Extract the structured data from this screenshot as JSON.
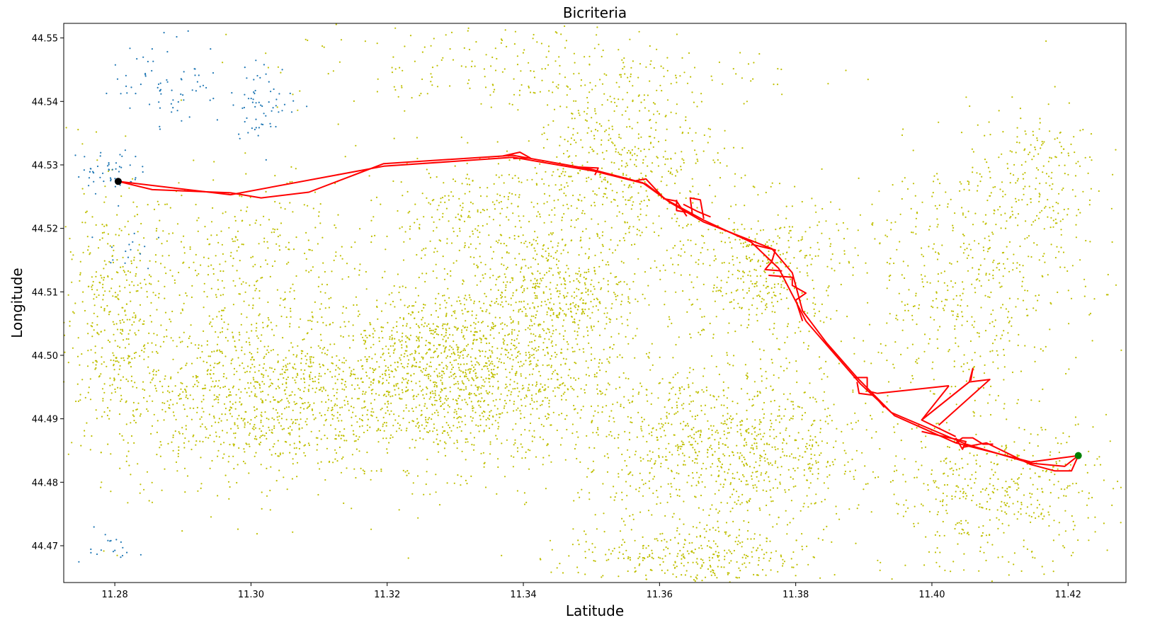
{
  "chart_data": {
    "type": "scatter",
    "title": "Bicriteria",
    "xlabel": "Latitude",
    "ylabel": "Longitude",
    "xlim": [
      11.2725,
      11.4285
    ],
    "ylim": [
      44.4642,
      44.5523
    ],
    "xticks": [
      11.28,
      11.3,
      11.32,
      11.34,
      11.36,
      11.38,
      11.4,
      11.42
    ],
    "yticks": [
      44.47,
      44.48,
      44.49,
      44.5,
      44.51,
      44.52,
      44.53,
      44.54,
      44.55
    ],
    "xtick_labels": [
      "11.28",
      "11.30",
      "11.32",
      "11.34",
      "11.36",
      "11.38",
      "11.40",
      "11.42"
    ],
    "ytick_labels": [
      "44.47",
      "44.48",
      "44.49",
      "44.50",
      "44.51",
      "44.52",
      "44.53",
      "44.54",
      "44.55"
    ],
    "grid": false,
    "colors": {
      "nodes_primary": "#bfbf00",
      "nodes_secondary": "#1f77b4",
      "route": "#ff0000",
      "start_marker": "#000000",
      "end_marker": "#008000"
    },
    "point_clusters": [
      {
        "series": "nodes_primary",
        "x": 11.33,
        "y": 44.497,
        "sx": 0.02,
        "sy": 0.012,
        "n": 1700
      },
      {
        "series": "nodes_primary",
        "x": 11.3,
        "y": 44.494,
        "sx": 0.016,
        "sy": 0.012,
        "n": 900
      },
      {
        "series": "nodes_primary",
        "x": 11.37,
        "y": 44.485,
        "sx": 0.018,
        "sy": 0.012,
        "n": 1000
      },
      {
        "series": "nodes_primary",
        "x": 11.355,
        "y": 44.53,
        "sx": 0.012,
        "sy": 0.012,
        "n": 500
      },
      {
        "series": "nodes_primary",
        "x": 11.28,
        "y": 44.505,
        "sx": 0.008,
        "sy": 0.018,
        "n": 450
      },
      {
        "series": "nodes_primary",
        "x": 11.41,
        "y": 44.478,
        "sx": 0.014,
        "sy": 0.01,
        "n": 450
      },
      {
        "series": "nodes_primary",
        "x": 11.405,
        "y": 44.512,
        "sx": 0.014,
        "sy": 0.016,
        "n": 500
      },
      {
        "series": "nodes_primary",
        "x": 11.375,
        "y": 44.513,
        "sx": 0.01,
        "sy": 0.01,
        "n": 400
      },
      {
        "series": "nodes_primary",
        "x": 11.333,
        "y": 44.522,
        "sx": 0.014,
        "sy": 0.008,
        "n": 300
      },
      {
        "series": "nodes_primary",
        "x": 11.3,
        "y": 44.517,
        "sx": 0.012,
        "sy": 0.01,
        "n": 250
      },
      {
        "series": "nodes_primary",
        "x": 11.365,
        "y": 44.468,
        "sx": 0.016,
        "sy": 0.004,
        "n": 300
      },
      {
        "series": "nodes_primary",
        "x": 11.345,
        "y": 44.51,
        "sx": 0.01,
        "sy": 0.008,
        "n": 400
      },
      {
        "series": "nodes_primary",
        "x": 11.34,
        "y": 44.545,
        "sx": 0.03,
        "sy": 0.006,
        "n": 250
      },
      {
        "series": "nodes_primary",
        "x": 11.415,
        "y": 44.528,
        "sx": 0.008,
        "sy": 0.01,
        "n": 200
      },
      {
        "series": "nodes_secondary",
        "x": 11.288,
        "y": 44.543,
        "sx": 0.007,
        "sy": 0.006,
        "n": 70
      },
      {
        "series": "nodes_secondary",
        "x": 11.302,
        "y": 44.54,
        "sx": 0.004,
        "sy": 0.005,
        "n": 60
      },
      {
        "series": "nodes_secondary",
        "x": 11.279,
        "y": 44.529,
        "sx": 0.004,
        "sy": 0.003,
        "n": 50
      },
      {
        "series": "nodes_secondary",
        "x": 11.278,
        "y": 44.47,
        "sx": 0.004,
        "sy": 0.002,
        "n": 20
      },
      {
        "series": "nodes_secondary",
        "x": 11.282,
        "y": 44.517,
        "sx": 0.003,
        "sy": 0.003,
        "n": 15
      }
    ],
    "route_paths": [
      [
        [
          11.2805,
          44.5274
        ],
        [
          11.2855,
          44.5261
        ],
        [
          11.297,
          44.5256
        ],
        [
          11.3015,
          44.5248
        ],
        [
          11.3085,
          44.5257
        ],
        [
          11.3195,
          44.5302
        ],
        [
          11.3385,
          44.5315
        ],
        [
          11.35,
          44.5293
        ],
        [
          11.3575,
          44.5272
        ],
        [
          11.361,
          44.5245
        ],
        [
          11.3665,
          44.5213
        ],
        [
          11.3735,
          44.5178
        ],
        [
          11.3775,
          44.5137
        ],
        [
          11.3815,
          44.5054
        ],
        [
          11.3895,
          44.4955
        ],
        [
          11.394,
          44.491
        ],
        [
          11.405,
          44.486
        ],
        [
          11.4145,
          44.483
        ],
        [
          11.4195,
          44.4825
        ],
        [
          11.4215,
          44.4842
        ]
      ],
      [
        [
          11.2805,
          44.5274
        ],
        [
          11.297,
          44.5253
        ],
        [
          11.3195,
          44.5298
        ],
        [
          11.3385,
          44.5312
        ],
        [
          11.3505,
          44.529
        ],
        [
          11.358,
          44.527
        ],
        [
          11.3615,
          44.5241
        ],
        [
          11.3665,
          44.521
        ],
        [
          11.3765,
          44.5168
        ],
        [
          11.3795,
          44.513
        ],
        [
          11.381,
          44.507
        ],
        [
          11.3845,
          44.502
        ],
        [
          11.389,
          44.4965
        ],
        [
          11.3945,
          44.4905
        ],
        [
          11.4035,
          44.4862
        ],
        [
          11.4145,
          44.4832
        ],
        [
          11.4215,
          44.4842
        ]
      ],
      [
        [
          11.337,
          44.5314
        ],
        [
          11.3395,
          44.532
        ],
        [
          11.341,
          44.5311
        ],
        [
          11.3385,
          44.531
        ]
      ],
      [
        [
          11.3475,
          44.5297
        ],
        [
          11.351,
          44.5295
        ],
        [
          11.3505,
          44.5284
        ]
      ],
      [
        [
          11.3565,
          44.5275
        ],
        [
          11.358,
          44.5278
        ],
        [
          11.3605,
          44.5249
        ]
      ],
      [
        [
          11.3625,
          44.5245
        ],
        [
          11.3625,
          44.5228
        ],
        [
          11.3648,
          44.5224
        ],
        [
          11.3645,
          44.5248
        ],
        [
          11.366,
          44.5245
        ],
        [
          11.3665,
          44.5215
        ]
      ],
      [
        [
          11.3605,
          44.5247
        ],
        [
          11.3625,
          44.5243
        ],
        [
          11.364,
          44.5219
        ]
      ],
      [
        [
          11.3635,
          44.5238
        ],
        [
          11.3655,
          44.5227
        ],
        [
          11.3675,
          44.5218
        ]
      ],
      [
        [
          11.3735,
          44.5175
        ],
        [
          11.377,
          44.5166
        ],
        [
          11.3765,
          44.5148
        ],
        [
          11.3755,
          44.5135
        ],
        [
          11.378,
          44.5133
        ]
      ],
      [
        [
          11.376,
          44.5126
        ],
        [
          11.3795,
          44.5123
        ],
        [
          11.3795,
          44.511
        ],
        [
          11.3815,
          44.5098
        ],
        [
          11.38,
          44.5087
        ],
        [
          11.381,
          44.5054
        ]
      ],
      [
        [
          11.3885,
          44.4965
        ],
        [
          11.3905,
          44.4965
        ],
        [
          11.3905,
          44.4944
        ],
        [
          11.392,
          44.494
        ]
      ],
      [
        [
          11.389,
          44.4958
        ],
        [
          11.3893,
          44.494
        ],
        [
          11.3915,
          44.4937
        ],
        [
          11.393,
          44.4918
        ]
      ],
      [
        [
          11.392,
          44.494
        ],
        [
          11.4025,
          44.4952
        ]
      ],
      [
        [
          11.4025,
          44.4952
        ],
        [
          11.3985,
          44.4898
        ],
        [
          11.4035,
          44.4872
        ]
      ],
      [
        [
          11.3985,
          44.4898
        ],
        [
          11.4055,
          44.4958
        ],
        [
          11.4085,
          44.4962
        ],
        [
          11.401,
          44.489
        ]
      ],
      [
        [
          11.3985,
          44.4898
        ],
        [
          11.4055,
          44.4958
        ],
        [
          11.406,
          44.4979
        ],
        [
          11.4057,
          44.496
        ]
      ],
      [
        [
          11.4045,
          44.4855
        ],
        [
          11.408,
          44.4862
        ],
        [
          11.4145,
          44.4828
        ],
        [
          11.418,
          44.4818
        ],
        [
          11.4205,
          44.4818
        ],
        [
          11.4215,
          44.4842
        ]
      ],
      [
        [
          11.4035,
          44.4862
        ],
        [
          11.4045,
          44.487
        ],
        [
          11.406,
          44.487
        ],
        [
          11.4075,
          44.486
        ],
        [
          11.409,
          44.486
        ]
      ],
      [
        [
          11.3985,
          44.488
        ],
        [
          11.405,
          44.4864
        ],
        [
          11.4045,
          44.4852
        ],
        [
          11.4035,
          44.487
        ]
      ]
    ],
    "start": {
      "x": 11.2805,
      "y": 44.5274
    },
    "end": {
      "x": 11.4215,
      "y": 44.4842
    }
  }
}
